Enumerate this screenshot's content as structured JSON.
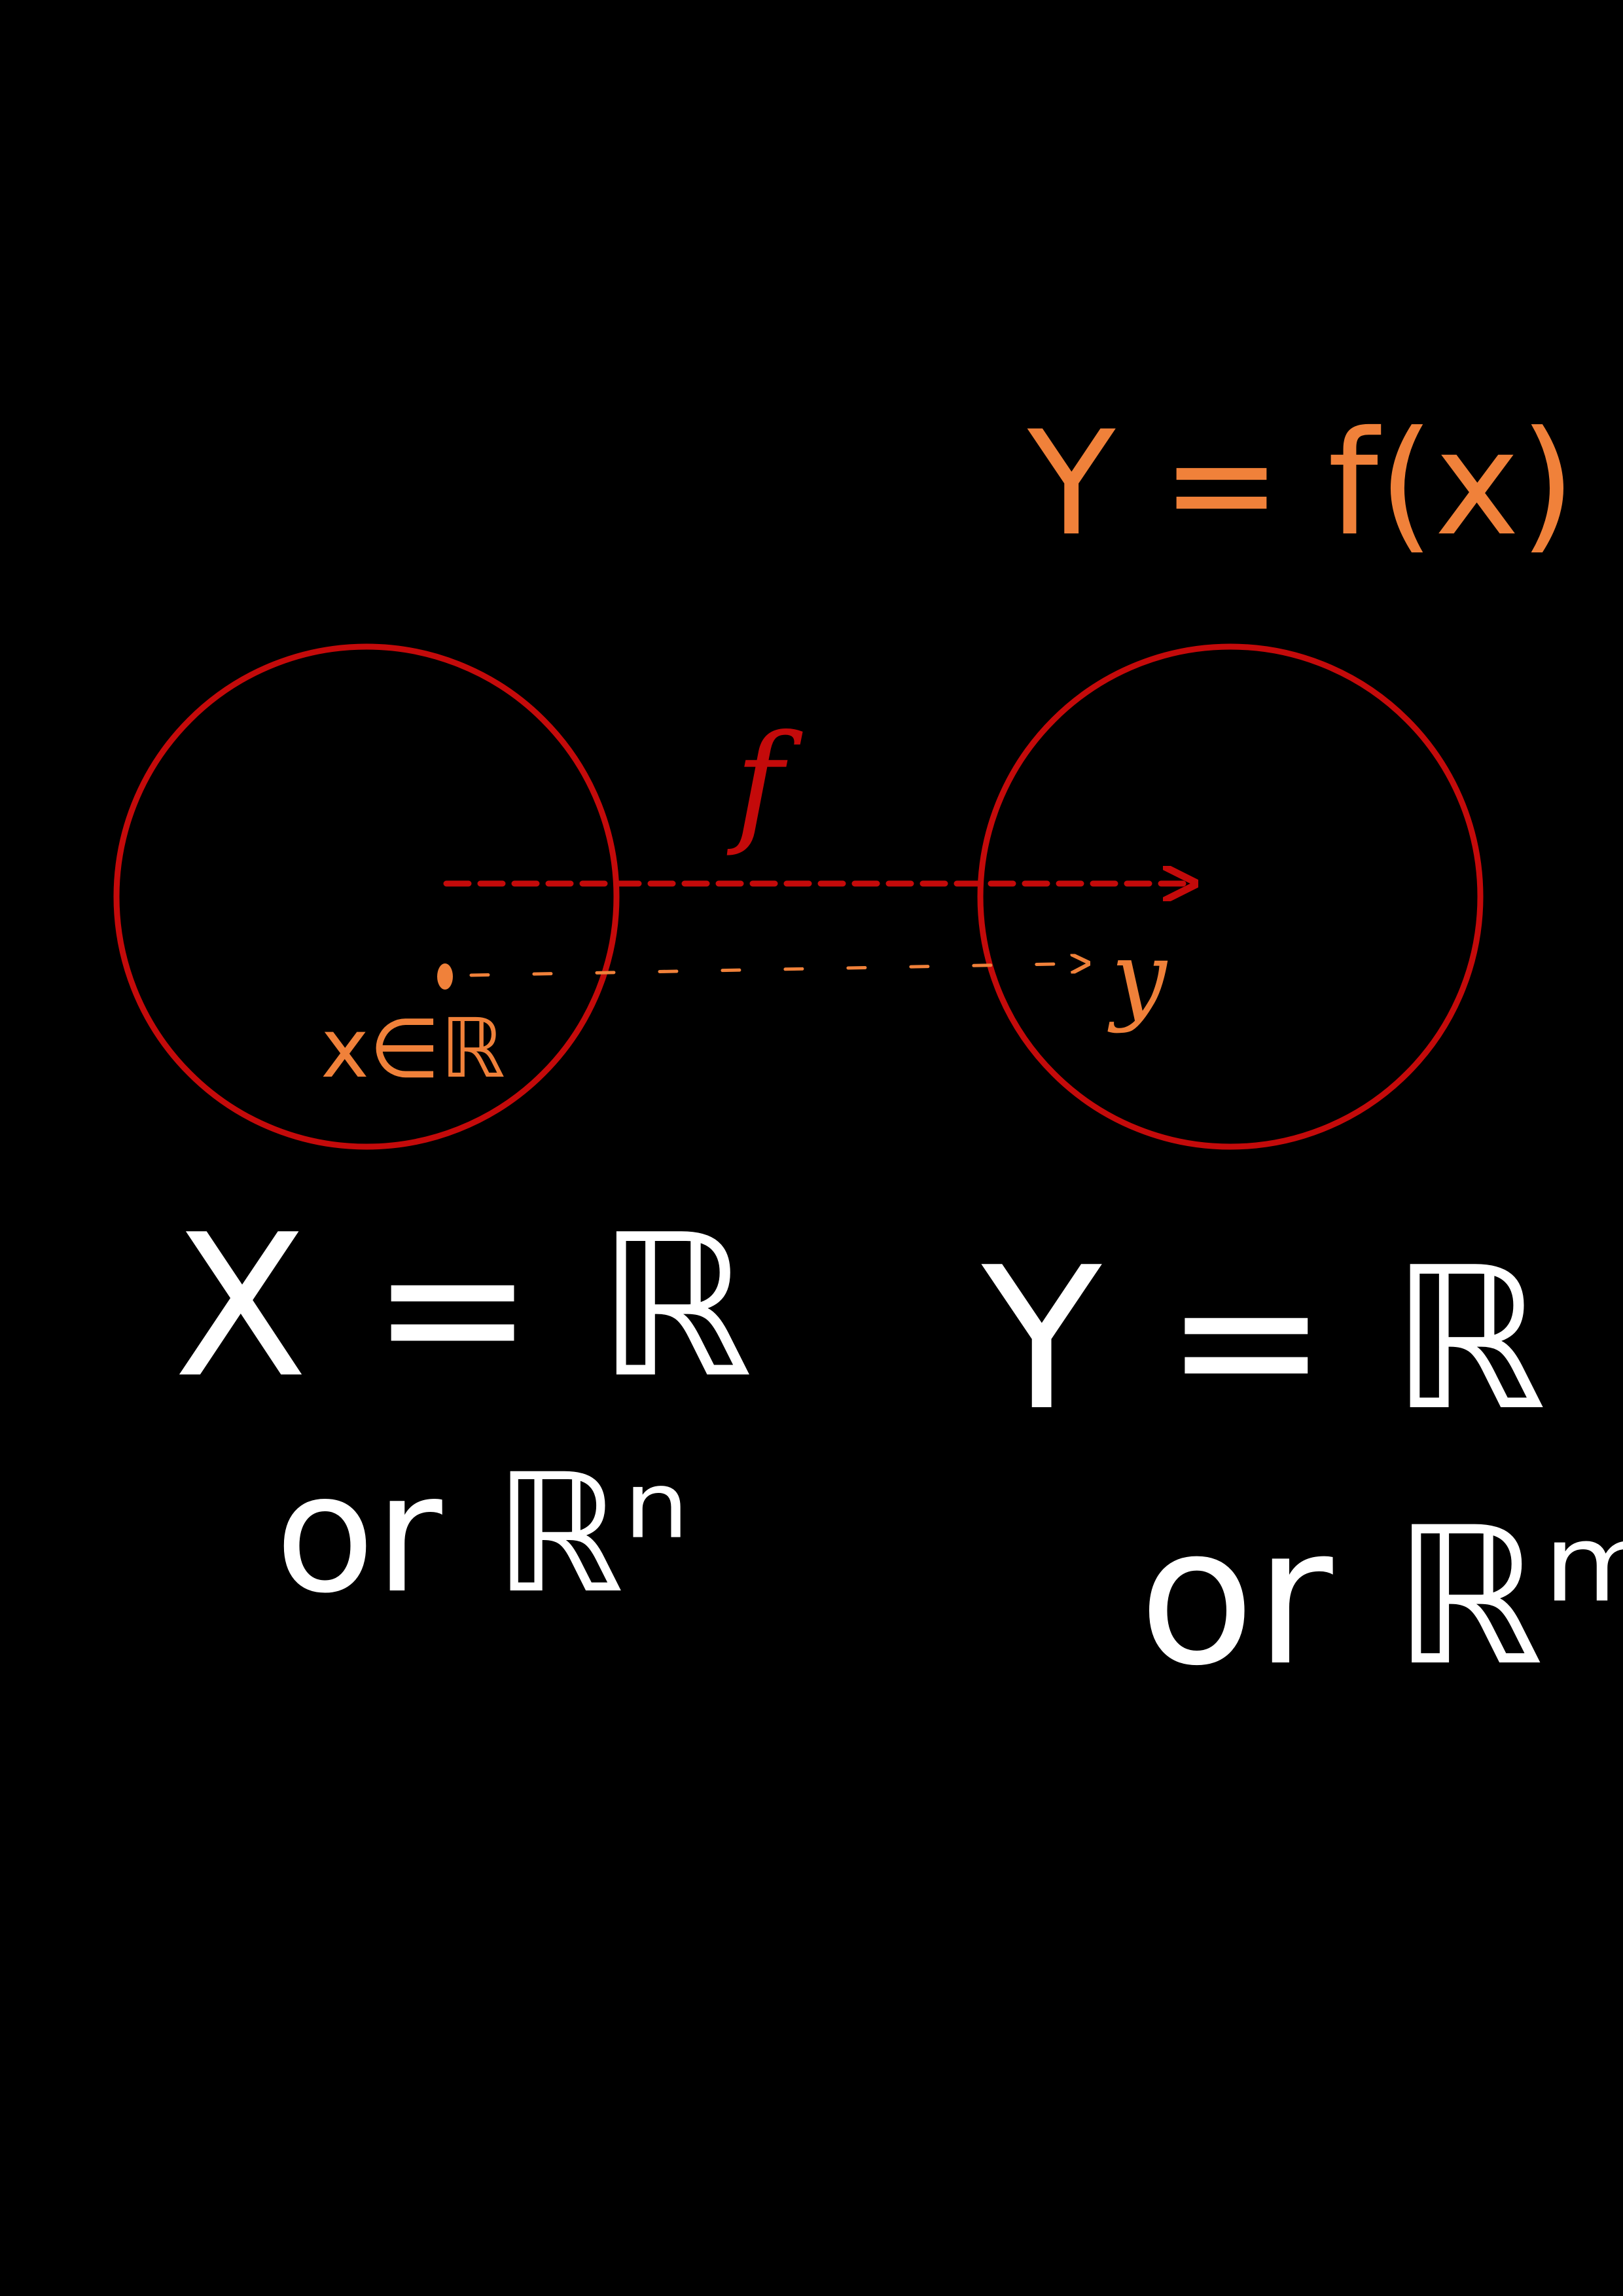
{
  "colors": {
    "background": "#000000",
    "circle_stroke": "#c40a0a",
    "function_arrow": "#c40a0a",
    "element_annotation": "#f0813a",
    "set_definition": "#ffffff"
  },
  "labels": {
    "output_formula": "Y = f(x)",
    "function_name": "f",
    "input_element": "x∈ℝ",
    "output_element": "y",
    "domain_def": "X = ℝ",
    "domain_alt": "or ℝⁿ",
    "codomain_def": "Y = ℝ",
    "codomain_alt": "or ℝᵐ"
  }
}
